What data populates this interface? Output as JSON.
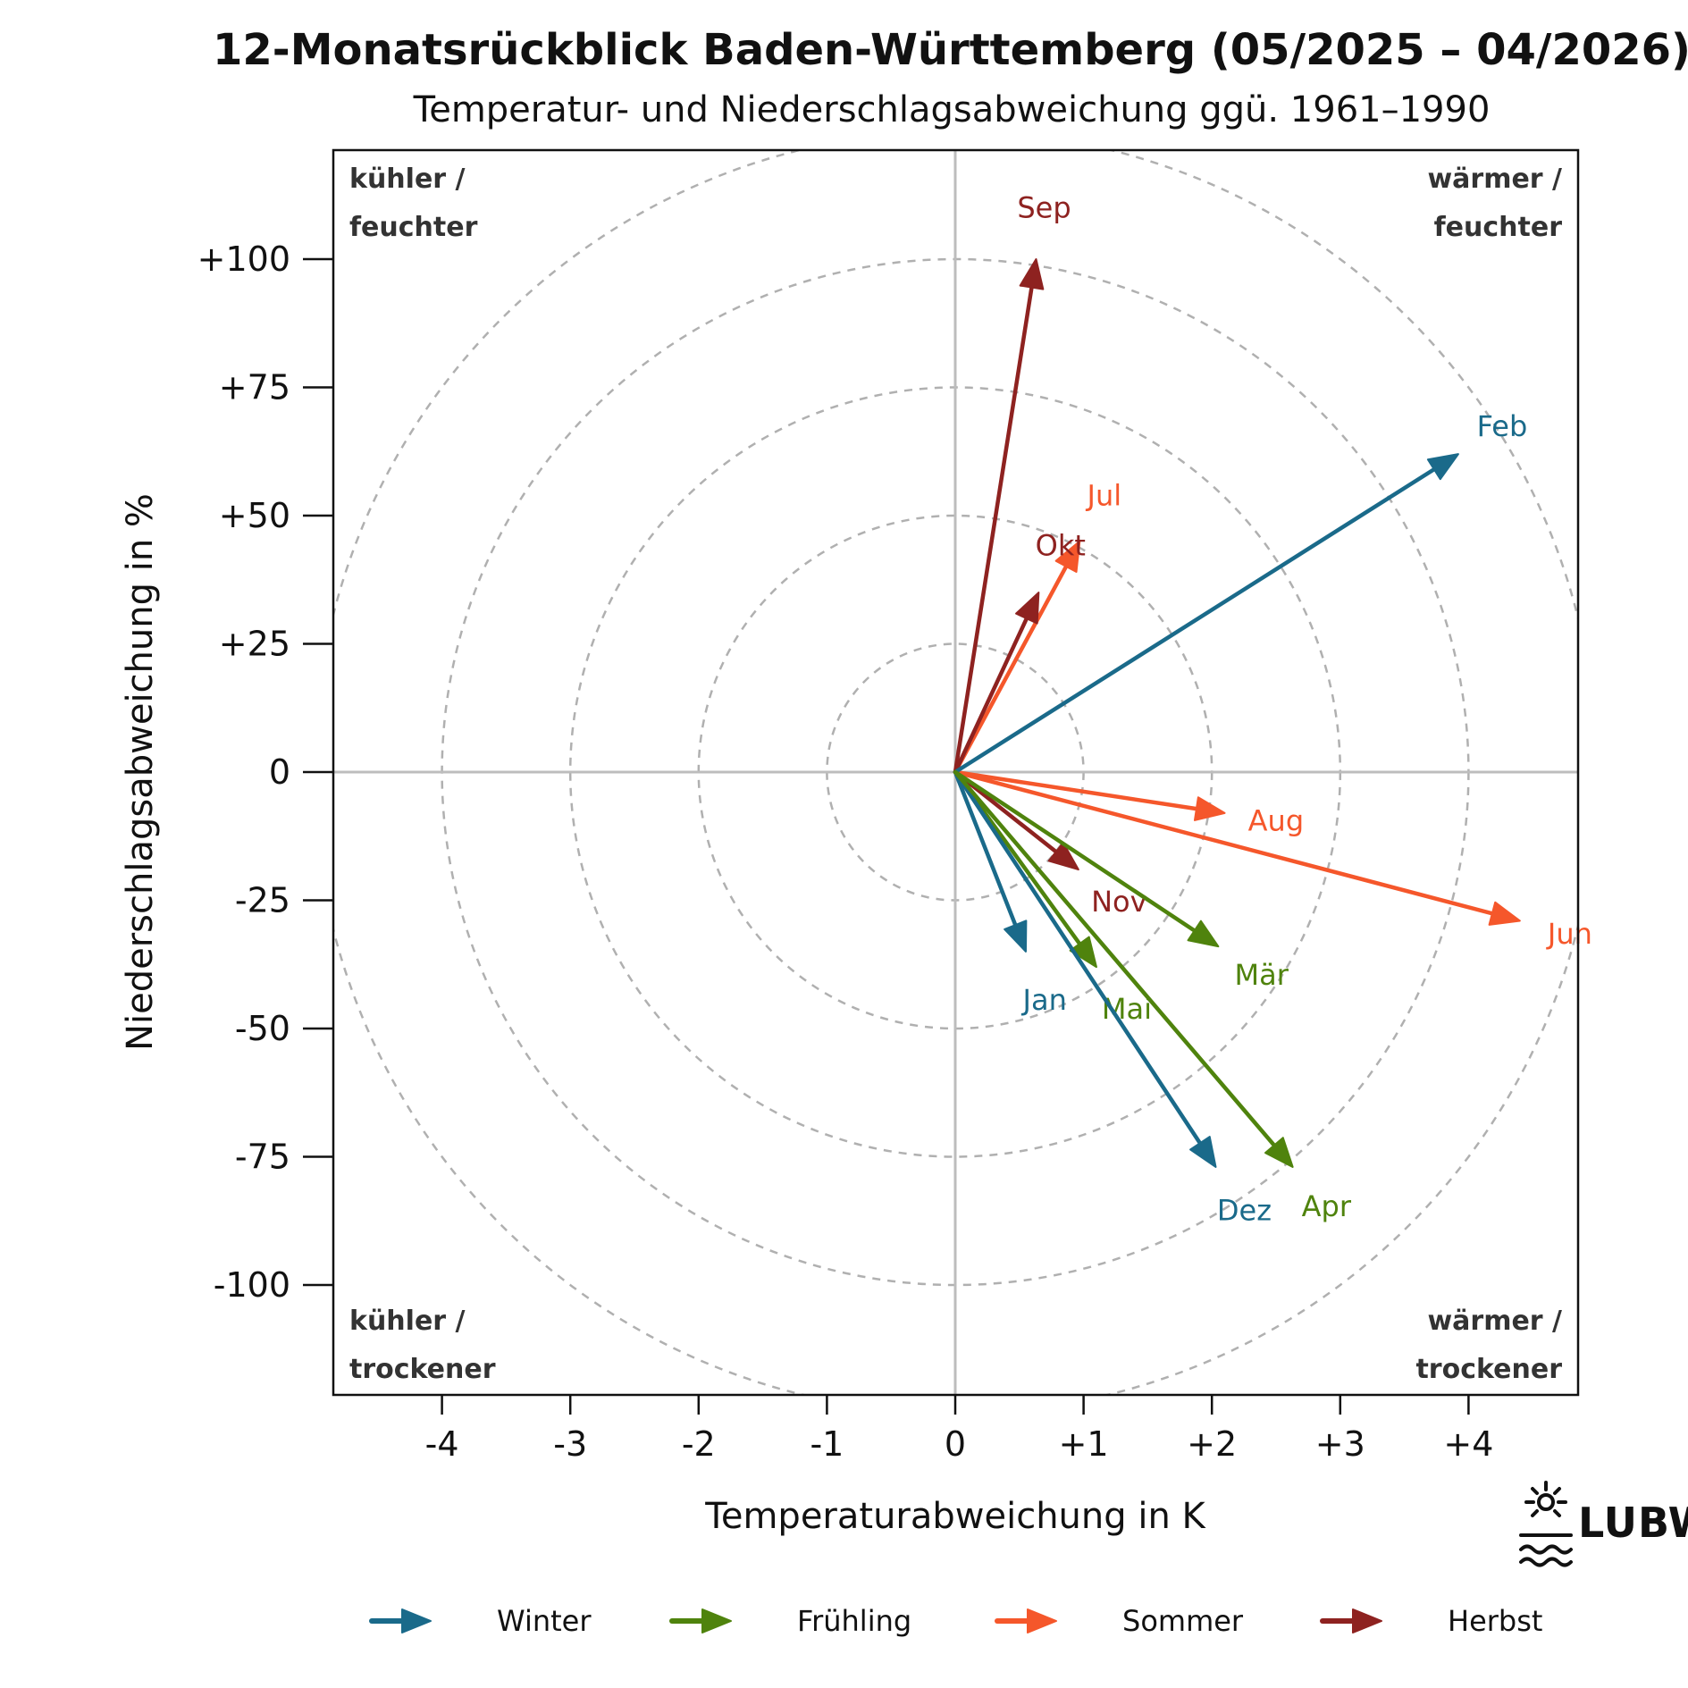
{
  "chart_data": {
    "type": "vector",
    "title": "12-Monatsrückblick Baden-Württemberg (05/2025 – 04/2026)",
    "subtitle": "Temperatur- und Niederschlagsabweichung ggü. 1961–1990",
    "xlabel": "Temperaturabweichung in K",
    "ylabel": "Niederschlagsabweichung in %",
    "xlim": [
      -4.85,
      4.85
    ],
    "ylim": [
      -121,
      121
    ],
    "x_ticks": [
      -4,
      -3,
      -2,
      -1,
      0,
      1,
      2,
      3,
      4
    ],
    "x_tick_labels": [
      "-4",
      "-3",
      "-2",
      "-1",
      "0",
      "+1",
      "+2",
      "+3",
      "+4"
    ],
    "y_ticks": [
      100,
      75,
      50,
      25,
      0,
      -25,
      -50,
      -75,
      -100
    ],
    "y_tick_labels": [
      "+100",
      "+75",
      "+50",
      "+25",
      "0",
      "-25",
      "-50",
      "-75",
      "-100"
    ],
    "grid": "concentric dashed circles",
    "quadrant_labels": {
      "top_left": [
        "kühler /",
        "feuchter"
      ],
      "top_right": [
        "wärmer /",
        "feuchter"
      ],
      "bottom_left": [
        "kühler /",
        "trockener"
      ],
      "bottom_right": [
        "wärmer /",
        "trockener"
      ]
    },
    "seasons": [
      {
        "name": "Winter",
        "color": "#1a6a8a"
      },
      {
        "name": "Frühling",
        "color": "#4f830d"
      },
      {
        "name": "Sommer",
        "color": "#f5572b"
      },
      {
        "name": "Herbst",
        "color": "#8e2220"
      }
    ],
    "points": [
      {
        "month": "Mai",
        "season": "Frühling",
        "x": 1.1,
        "y": -38
      },
      {
        "month": "Jun",
        "season": "Sommer",
        "x": 4.4,
        "y": -29
      },
      {
        "month": "Jul",
        "season": "Sommer",
        "x": 0.97,
        "y": 45
      },
      {
        "month": "Aug",
        "season": "Sommer",
        "x": 2.1,
        "y": -8
      },
      {
        "month": "Sep",
        "season": "Herbst",
        "x": 0.63,
        "y": 100
      },
      {
        "month": "Okt",
        "season": "Herbst",
        "x": 0.65,
        "y": 35
      },
      {
        "month": "Nov",
        "season": "Herbst",
        "x": 0.96,
        "y": -19
      },
      {
        "month": "Dez",
        "season": "Winter",
        "x": 2.03,
        "y": -77
      },
      {
        "month": "Jan",
        "season": "Winter",
        "x": 0.55,
        "y": -35
      },
      {
        "month": "Feb",
        "season": "Winter",
        "x": 3.92,
        "y": 62
      },
      {
        "month": "Mär",
        "season": "Frühling",
        "x": 2.05,
        "y": -34
      },
      {
        "month": "Apr",
        "season": "Frühling",
        "x": 2.63,
        "y": -77
      }
    ]
  },
  "logo": {
    "text": "LUBW"
  }
}
